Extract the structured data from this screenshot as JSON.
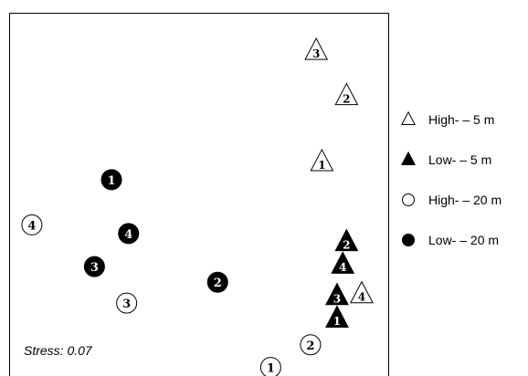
{
  "chart_data": {
    "type": "scatter",
    "annotation": "Stress: 0.07",
    "legend_position": "right",
    "series": [
      {
        "name": "High-   – 5 m",
        "marker": "triangle",
        "fill": "open",
        "color": "#000000",
        "points": [
          {
            "label": "3",
            "x": 0.62,
            "y": 0.78
          },
          {
            "label": "2",
            "x": 0.78,
            "y": 0.52
          },
          {
            "label": "1",
            "x": 0.65,
            "y": 0.14
          },
          {
            "label": "4",
            "x": 0.86,
            "y": -0.62
          }
        ]
      },
      {
        "name": "Low-   – 5 m",
        "marker": "triangle",
        "fill": "solid",
        "color": "#000000",
        "points": [
          {
            "label": "2",
            "x": 0.78,
            "y": -0.32
          },
          {
            "label": "4",
            "x": 0.76,
            "y": -0.45
          },
          {
            "label": "3",
            "x": 0.73,
            "y": -0.63
          },
          {
            "label": "1",
            "x": 0.73,
            "y": -0.76
          }
        ]
      },
      {
        "name": "High-   – 20 m",
        "marker": "circle",
        "fill": "open",
        "color": "#000000",
        "points": [
          {
            "label": "4",
            "x": -0.88,
            "y": -0.22
          },
          {
            "label": "3",
            "x": -0.38,
            "y": -0.67
          },
          {
            "label": "2",
            "x": 0.59,
            "y": -0.91
          },
          {
            "label": "1",
            "x": 0.38,
            "y": -1.04
          }
        ]
      },
      {
        "name": "Low-   – 20 m",
        "marker": "circle",
        "fill": "solid",
        "color": "#000000",
        "points": [
          {
            "label": "1",
            "x": -0.46,
            "y": 0.04
          },
          {
            "label": "4",
            "x": -0.37,
            "y": -0.27
          },
          {
            "label": "3",
            "x": -0.55,
            "y": -0.46
          },
          {
            "label": "2",
            "x": 0.1,
            "y": -0.55
          }
        ]
      }
    ],
    "xlim": [
      -1.0,
      1.0
    ],
    "ylim": [
      -1.1,
      1.0
    ]
  }
}
